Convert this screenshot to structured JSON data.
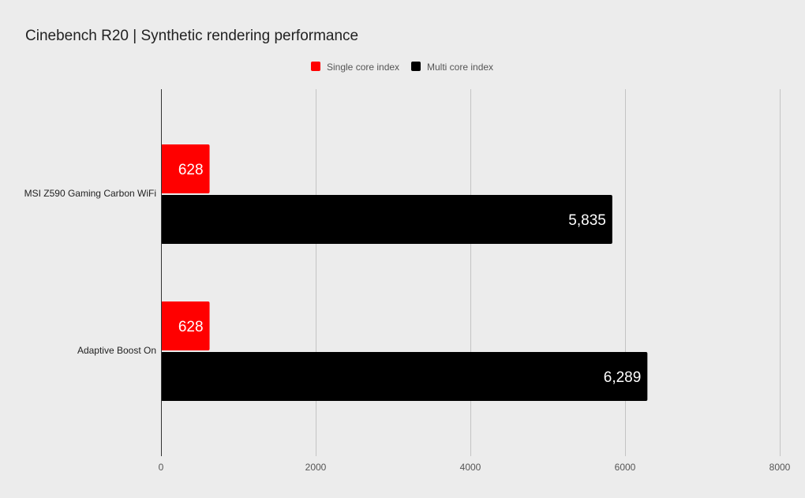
{
  "chart_data": {
    "type": "bar",
    "orientation": "horizontal",
    "title": "Cinebench R20 | Synthetic rendering performance",
    "categories": [
      "MSI Z590 Gaming Carbon WiFi",
      "Adaptive Boost On"
    ],
    "series": [
      {
        "name": "Single core index",
        "color": "#ff0000",
        "values": [
          628,
          628
        ],
        "labels": [
          "628",
          "628"
        ]
      },
      {
        "name": "Multi core index",
        "color": "#000000",
        "values": [
          5835,
          6289
        ],
        "labels": [
          "5,835",
          "6,289"
        ]
      }
    ],
    "xlim": [
      0,
      8000
    ],
    "xticks": [
      0,
      2000,
      4000,
      6000,
      8000
    ],
    "xtick_labels": [
      "0",
      "2000",
      "4000",
      "6000",
      "8000"
    ],
    "grid": true,
    "legend_position": "top"
  }
}
